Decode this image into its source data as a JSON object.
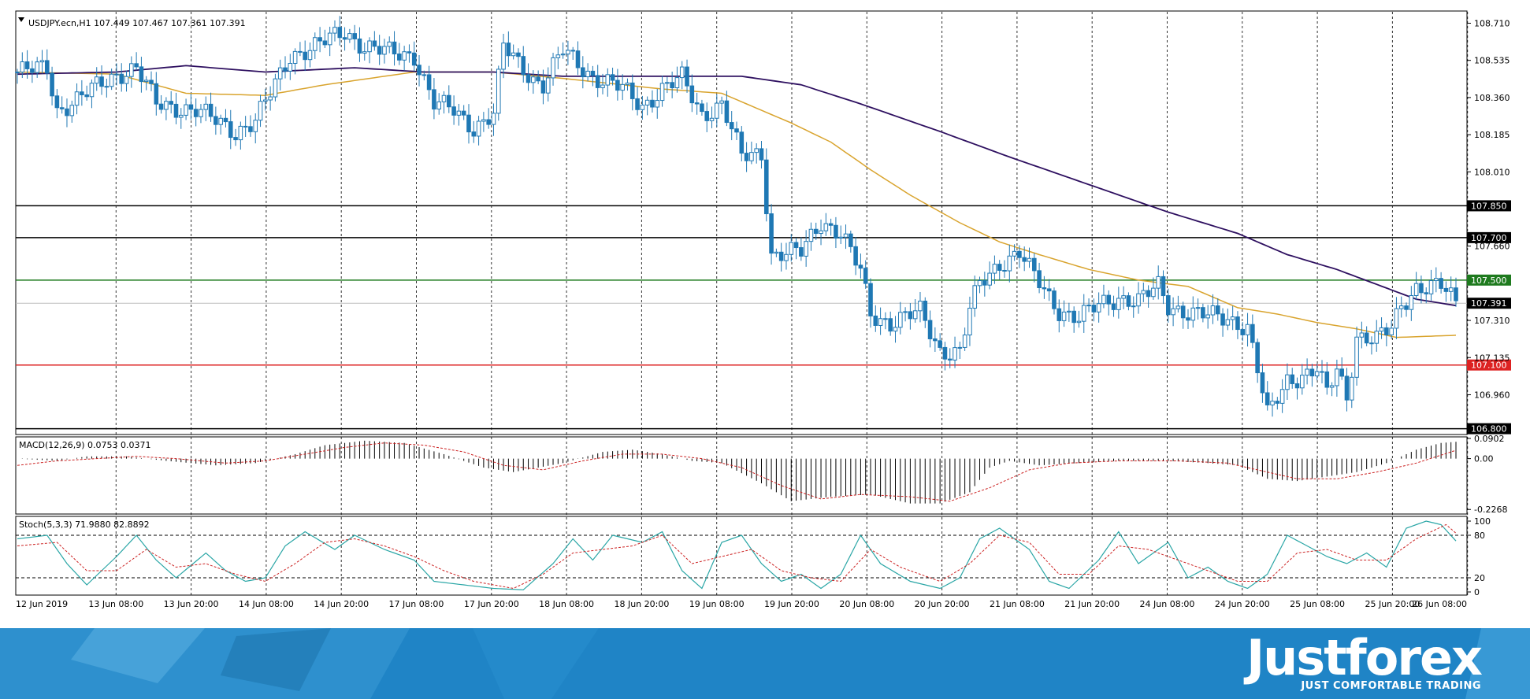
{
  "chart_data": {
    "type": "candlestick",
    "symbol_header": "USDJPY.ecn,H1  107.449 107.467 107.361 107.391",
    "price_axis": {
      "ylim": [
        106.78,
        108.76
      ],
      "ticks": [
        "108.710",
        "108.535",
        "108.360",
        "108.185",
        "108.010",
        "107.660",
        "107.310",
        "107.135",
        "106.960"
      ]
    },
    "horizontal_levels": [
      {
        "price": 107.85,
        "label": "107.850",
        "color": "#000000"
      },
      {
        "price": 107.7,
        "label": "107.700",
        "color": "#000000"
      },
      {
        "price": 107.5,
        "label": "107.500",
        "color": "#1e7a1e"
      },
      {
        "price": 107.1,
        "label": "107.100",
        "color": "#dd2222"
      },
      {
        "price": 106.8,
        "label": "106.800",
        "color": "#000000"
      }
    ],
    "current_price": {
      "price": 107.391,
      "label": "107.391"
    },
    "time_labels": [
      "12 Jun 2019",
      "13 Jun 08:00",
      "13 Jun 20:00",
      "14 Jun 08:00",
      "14 Jun 20:00",
      "17 Jun 08:00",
      "17 Jun 20:00",
      "18 Jun 08:00",
      "18 Jun 20:00",
      "19 Jun 08:00",
      "19 Jun 20:00",
      "20 Jun 08:00",
      "20 Jun 20:00",
      "21 Jun 08:00",
      "21 Jun 20:00",
      "24 Jun 08:00",
      "24 Jun 20:00",
      "25 Jun 08:00",
      "25 Jun 20:00",
      "26 Jun 08:00"
    ],
    "price_path": [
      [
        0,
        108.48
      ],
      [
        6,
        108.5
      ],
      [
        8,
        108.3
      ],
      [
        12,
        108.35
      ],
      [
        20,
        108.47
      ],
      [
        24,
        108.5
      ],
      [
        28,
        108.33
      ],
      [
        36,
        108.3
      ],
      [
        40,
        108.25
      ],
      [
        44,
        108.2
      ],
      [
        48,
        108.25
      ],
      [
        52,
        108.42
      ],
      [
        55,
        108.56
      ],
      [
        60,
        108.6
      ],
      [
        66,
        108.67
      ],
      [
        70,
        108.6
      ],
      [
        75,
        108.57
      ],
      [
        80,
        108.56
      ],
      [
        84,
        108.33
      ],
      [
        88,
        108.3
      ],
      [
        92,
        108.22
      ],
      [
        96,
        108.28
      ],
      [
        98,
        108.6
      ],
      [
        104,
        108.45
      ],
      [
        106,
        108.42
      ],
      [
        110,
        108.58
      ],
      [
        116,
        108.46
      ],
      [
        122,
        108.4
      ],
      [
        126,
        108.32
      ],
      [
        130,
        108.4
      ],
      [
        134,
        108.45
      ],
      [
        138,
        108.28
      ],
      [
        142,
        108.33
      ],
      [
        146,
        108.08
      ],
      [
        150,
        108.1
      ],
      [
        152,
        107.62
      ],
      [
        158,
        107.63
      ],
      [
        162,
        107.78
      ],
      [
        166,
        107.72
      ],
      [
        170,
        107.54
      ],
      [
        172,
        107.34
      ],
      [
        176,
        107.3
      ],
      [
        182,
        107.35
      ],
      [
        186,
        107.17
      ],
      [
        190,
        107.16
      ],
      [
        192,
        107.36
      ],
      [
        194,
        107.48
      ],
      [
        198,
        107.58
      ],
      [
        202,
        107.63
      ],
      [
        204,
        107.55
      ],
      [
        208,
        107.42
      ],
      [
        210,
        107.36
      ],
      [
        214,
        107.32
      ],
      [
        218,
        107.38
      ],
      [
        222,
        107.42
      ],
      [
        226,
        107.4
      ],
      [
        230,
        107.47
      ],
      [
        232,
        107.38
      ],
      [
        236,
        107.35
      ],
      [
        240,
        107.33
      ],
      [
        244,
        107.32
      ],
      [
        248,
        107.28
      ],
      [
        250,
        107.08
      ],
      [
        252,
        106.86
      ],
      [
        256,
        107.03
      ],
      [
        260,
        107.06
      ],
      [
        262,
        107.08
      ],
      [
        264,
        106.96
      ],
      [
        266,
        107.08
      ],
      [
        268,
        106.95
      ],
      [
        270,
        107.24
      ],
      [
        274,
        107.22
      ],
      [
        277,
        107.27
      ],
      [
        279,
        107.38
      ],
      [
        282,
        107.47
      ],
      [
        287,
        107.47
      ],
      [
        290,
        107.39
      ]
    ],
    "ma_fast_path": [
      [
        0,
        108.48
      ],
      [
        20,
        108.47
      ],
      [
        34,
        108.38
      ],
      [
        50,
        108.37
      ],
      [
        62,
        108.42
      ],
      [
        80,
        108.48
      ],
      [
        96,
        108.48
      ],
      [
        110,
        108.45
      ],
      [
        130,
        108.4
      ],
      [
        142,
        108.38
      ],
      [
        150,
        108.3
      ],
      [
        156,
        108.24
      ],
      [
        164,
        108.15
      ],
      [
        172,
        108.02
      ],
      [
        180,
        107.9
      ],
      [
        190,
        107.77
      ],
      [
        198,
        107.68
      ],
      [
        206,
        107.62
      ],
      [
        216,
        107.55
      ],
      [
        226,
        107.5
      ],
      [
        236,
        107.47
      ],
      [
        246,
        107.37
      ],
      [
        254,
        107.34
      ],
      [
        262,
        107.3
      ],
      [
        270,
        107.27
      ],
      [
        278,
        107.23
      ],
      [
        290,
        107.24
      ]
    ],
    "ma_slow_path": [
      [
        0,
        108.47
      ],
      [
        20,
        108.48
      ],
      [
        34,
        108.51
      ],
      [
        50,
        108.48
      ],
      [
        68,
        108.5
      ],
      [
        82,
        108.48
      ],
      [
        96,
        108.48
      ],
      [
        110,
        108.46
      ],
      [
        130,
        108.46
      ],
      [
        146,
        108.46
      ],
      [
        158,
        108.42
      ],
      [
        170,
        108.33
      ],
      [
        186,
        108.2
      ],
      [
        200,
        108.08
      ],
      [
        216,
        107.95
      ],
      [
        232,
        107.82
      ],
      [
        246,
        107.72
      ],
      [
        256,
        107.62
      ],
      [
        266,
        107.55
      ],
      [
        274,
        107.48
      ],
      [
        282,
        107.41
      ],
      [
        290,
        107.38
      ]
    ],
    "macd": {
      "label": "MACD(12,26,9) 0.0753 0.0371",
      "ylim": [
        -0.24,
        0.09
      ],
      "ticks": [
        "0.0902",
        "0.00",
        "-0.2268"
      ],
      "histogram_path": [
        [
          0,
          0.0
        ],
        [
          8,
          -0.01
        ],
        [
          14,
          0.01
        ],
        [
          22,
          0.01
        ],
        [
          30,
          -0.01
        ],
        [
          40,
          -0.03
        ],
        [
          48,
          -0.02
        ],
        [
          56,
          0.02
        ],
        [
          62,
          0.06
        ],
        [
          70,
          0.08
        ],
        [
          78,
          0.07
        ],
        [
          86,
          0.02
        ],
        [
          94,
          -0.04
        ],
        [
          100,
          -0.06
        ],
        [
          110,
          -0.02
        ],
        [
          118,
          0.03
        ],
        [
          124,
          0.04
        ],
        [
          130,
          0.02
        ],
        [
          136,
          -0.01
        ],
        [
          142,
          -0.02
        ],
        [
          150,
          -0.11
        ],
        [
          156,
          -0.19
        ],
        [
          164,
          -0.17
        ],
        [
          172,
          -0.16
        ],
        [
          180,
          -0.2
        ],
        [
          186,
          -0.2
        ],
        [
          192,
          -0.15
        ],
        [
          196,
          -0.04
        ],
        [
          200,
          -0.01
        ],
        [
          206,
          -0.03
        ],
        [
          214,
          -0.02
        ],
        [
          222,
          -0.01
        ],
        [
          232,
          -0.01
        ],
        [
          240,
          -0.02
        ],
        [
          246,
          -0.03
        ],
        [
          252,
          -0.09
        ],
        [
          258,
          -0.1
        ],
        [
          264,
          -0.08
        ],
        [
          270,
          -0.06
        ],
        [
          276,
          -0.02
        ],
        [
          282,
          0.04
        ],
        [
          287,
          0.07
        ],
        [
          290,
          0.075
        ]
      ],
      "signal_path": [
        [
          0,
          -0.03
        ],
        [
          8,
          -0.01
        ],
        [
          16,
          0.0
        ],
        [
          24,
          0.01
        ],
        [
          32,
          0.0
        ],
        [
          42,
          -0.02
        ],
        [
          50,
          -0.01
        ],
        [
          58,
          0.02
        ],
        [
          66,
          0.05
        ],
        [
          74,
          0.07
        ],
        [
          82,
          0.06
        ],
        [
          90,
          0.03
        ],
        [
          98,
          -0.03
        ],
        [
          106,
          -0.05
        ],
        [
          114,
          -0.01
        ],
        [
          122,
          0.02
        ],
        [
          130,
          0.02
        ],
        [
          138,
          0.0
        ],
        [
          146,
          -0.04
        ],
        [
          154,
          -0.12
        ],
        [
          162,
          -0.18
        ],
        [
          170,
          -0.16
        ],
        [
          180,
          -0.17
        ],
        [
          188,
          -0.19
        ],
        [
          196,
          -0.13
        ],
        [
          204,
          -0.05
        ],
        [
          212,
          -0.02
        ],
        [
          222,
          -0.01
        ],
        [
          234,
          -0.01
        ],
        [
          244,
          -0.02
        ],
        [
          252,
          -0.06
        ],
        [
          258,
          -0.09
        ],
        [
          266,
          -0.09
        ],
        [
          274,
          -0.06
        ],
        [
          282,
          -0.02
        ],
        [
          290,
          0.037
        ]
      ]
    },
    "stoch": {
      "label": "Stoch(5,3,3) 71.9880 82.8892",
      "ylim": [
        0,
        100
      ],
      "ticks": [
        "100",
        "80",
        "20",
        "0"
      ],
      "levels": [
        80,
        20
      ],
      "k_path": [
        [
          0,
          75
        ],
        [
          6,
          80
        ],
        [
          10,
          40
        ],
        [
          14,
          10
        ],
        [
          20,
          50
        ],
        [
          24,
          80
        ],
        [
          28,
          45
        ],
        [
          32,
          20
        ],
        [
          38,
          55
        ],
        [
          42,
          30
        ],
        [
          46,
          15
        ],
        [
          50,
          20
        ],
        [
          54,
          65
        ],
        [
          58,
          85
        ],
        [
          64,
          60
        ],
        [
          68,
          80
        ],
        [
          74,
          60
        ],
        [
          80,
          45
        ],
        [
          84,
          15
        ],
        [
          90,
          10
        ],
        [
          96,
          5
        ],
        [
          102,
          3
        ],
        [
          108,
          40
        ],
        [
          112,
          75
        ],
        [
          116,
          45
        ],
        [
          120,
          80
        ],
        [
          126,
          70
        ],
        [
          130,
          85
        ],
        [
          134,
          30
        ],
        [
          138,
          5
        ],
        [
          142,
          70
        ],
        [
          146,
          80
        ],
        [
          150,
          40
        ],
        [
          154,
          15
        ],
        [
          158,
          25
        ],
        [
          162,
          5
        ],
        [
          166,
          25
        ],
        [
          170,
          80
        ],
        [
          174,
          40
        ],
        [
          180,
          15
        ],
        [
          186,
          5
        ],
        [
          190,
          20
        ],
        [
          194,
          75
        ],
        [
          198,
          90
        ],
        [
          204,
          60
        ],
        [
          208,
          15
        ],
        [
          212,
          5
        ],
        [
          218,
          45
        ],
        [
          222,
          85
        ],
        [
          226,
          40
        ],
        [
          232,
          70
        ],
        [
          236,
          20
        ],
        [
          240,
          35
        ],
        [
          244,
          15
        ],
        [
          248,
          5
        ],
        [
          252,
          25
        ],
        [
          256,
          80
        ],
        [
          260,
          65
        ],
        [
          264,
          50
        ],
        [
          268,
          40
        ],
        [
          272,
          55
        ],
        [
          276,
          35
        ],
        [
          280,
          90
        ],
        [
          284,
          100
        ],
        [
          287,
          95
        ],
        [
          290,
          72
        ]
      ],
      "d_path": [
        [
          0,
          65
        ],
        [
          8,
          70
        ],
        [
          14,
          30
        ],
        [
          20,
          30
        ],
        [
          26,
          60
        ],
        [
          32,
          35
        ],
        [
          38,
          40
        ],
        [
          44,
          25
        ],
        [
          50,
          15
        ],
        [
          56,
          40
        ],
        [
          62,
          70
        ],
        [
          68,
          75
        ],
        [
          74,
          65
        ],
        [
          80,
          50
        ],
        [
          86,
          30
        ],
        [
          92,
          15
        ],
        [
          100,
          5
        ],
        [
          106,
          25
        ],
        [
          112,
          55
        ],
        [
          118,
          60
        ],
        [
          124,
          65
        ],
        [
          130,
          80
        ],
        [
          136,
          40
        ],
        [
          142,
          50
        ],
        [
          148,
          60
        ],
        [
          154,
          30
        ],
        [
          160,
          20
        ],
        [
          166,
          15
        ],
        [
          172,
          60
        ],
        [
          178,
          35
        ],
        [
          186,
          15
        ],
        [
          192,
          40
        ],
        [
          198,
          80
        ],
        [
          204,
          70
        ],
        [
          210,
          25
        ],
        [
          216,
          25
        ],
        [
          222,
          65
        ],
        [
          228,
          60
        ],
        [
          234,
          45
        ],
        [
          240,
          30
        ],
        [
          246,
          15
        ],
        [
          252,
          15
        ],
        [
          258,
          55
        ],
        [
          264,
          60
        ],
        [
          270,
          45
        ],
        [
          276,
          45
        ],
        [
          282,
          75
        ],
        [
          288,
          95
        ],
        [
          290,
          83
        ]
      ]
    }
  },
  "branding": {
    "brand_name": "Justforex",
    "tagline": "JUST COMFORTABLE TRADING"
  },
  "colors": {
    "candle": "#1f78b4",
    "ma_fast": "#d9a42e",
    "ma_slow": "#2e1060",
    "macd_signal": "#cc2222",
    "stoch_k": "#2aa6a6",
    "stoch_d": "#cc2222",
    "footer_bg": "#1f84c6"
  }
}
